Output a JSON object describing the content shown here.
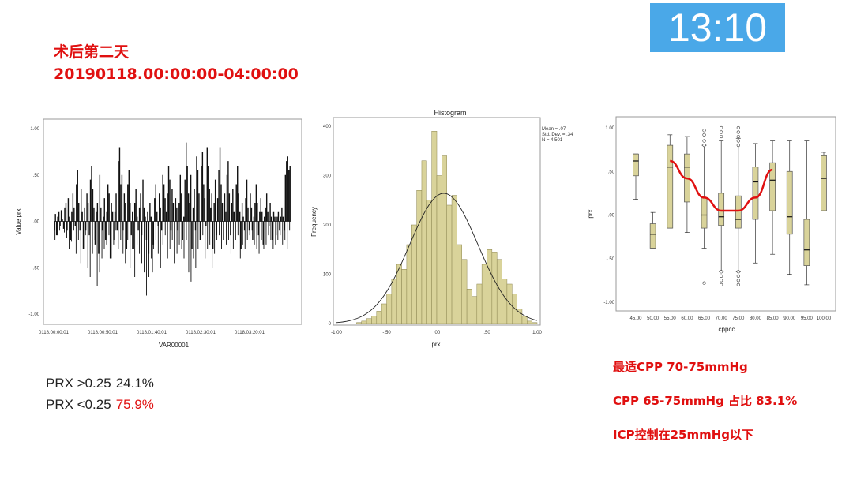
{
  "slide": {
    "title_line1": "术后第二天",
    "title_line2": "20190118.00:00:00-04:00:00",
    "clock": "13:10",
    "stats": [
      {
        "label": "PRX >0.25",
        "value": "24.1%",
        "highlight": false
      },
      {
        "label": "PRX <0.25",
        "value": "75.9%",
        "highlight": true
      }
    ],
    "notes": [
      "最适CPP 70-75mmHg",
      "CPP 65-75mmHg 占比 83.1%",
      "ICP控制在25mmHg以下"
    ],
    "accent": "#e01010",
    "clock_bg": "#4aa8e8"
  },
  "chart_data": [
    {
      "type": "bar",
      "title": "",
      "xlabel": "VAR00001",
      "ylabel": "Value prx",
      "ylim": [
        -1.0,
        1.0
      ],
      "x_ticks": [
        "0118.00:00:01",
        "0118.00:50:01",
        "0118.01:40:01",
        "0118.02:30:01",
        "0118.03:20:01"
      ],
      "y_ticks": [
        "1.00",
        ".50",
        ".00",
        "-.50",
        "-1.00"
      ],
      "values": [
        -0.1,
        0.08,
        -0.15,
        0.05,
        0.1,
        -0.05,
        0.12,
        0.02,
        -0.08,
        0.15,
        0.2,
        -0.1,
        0.25,
        0.05,
        -0.2,
        0.1,
        0.3,
        0.15,
        -0.05,
        0.4,
        0.55,
        0.2,
        -0.1,
        0.35,
        0.1,
        -0.3,
        0.15,
        -0.1,
        0.3,
        0.2,
        -0.15,
        0.45,
        0.6,
        0.35,
        0.15,
        -0.25,
        0.1,
        0.2,
        -0.35,
        0.5,
        0.15,
        -0.1,
        0.05,
        0.25,
        -0.2,
        0.1,
        0.4,
        0.3,
        -0.4,
        0.2,
        0.1,
        -0.2,
        0.1,
        0.3,
        -0.1,
        0.65,
        0.8,
        0.4,
        0.5,
        -0.1,
        0.3,
        0.2,
        -0.3,
        0.4,
        0.55,
        0.2,
        -0.15,
        0.1,
        -0.3,
        0.2,
        0.35,
        0.05,
        -0.1,
        0.15,
        0.3,
        -0.15,
        0.45,
        0.15,
        0.05,
        -0.2,
        0.1,
        -0.35,
        0.2,
        0.05,
        -0.55,
        -0.25,
        0.25,
        0.4,
        0.1,
        -0.05,
        0.3,
        0.15,
        -0.1,
        0.5,
        0.4,
        0.25,
        0.1,
        0.3,
        0.6,
        0.45,
        -0.1,
        0.35,
        0.2,
        -0.45,
        0.25,
        0.15,
        -0.1,
        0.2,
        0.5,
        0.3,
        -0.2,
        0.05,
        0.45,
        0.85,
        0.6,
        0.3,
        0.2,
        0.5,
        -0.3,
        0.15,
        0.35,
        -0.1,
        0.7,
        0.55,
        0.3,
        -0.2,
        0.6,
        0.75,
        0.4,
        0.25,
        -0.05,
        0.8,
        0.6,
        0.35,
        0.15,
        0.3,
        -0.3,
        0.2,
        0.45,
        -0.15,
        0.25,
        0.55,
        0.8,
        0.4,
        0.2,
        -0.2,
        0.3,
        0.1,
        0.5,
        0.65,
        0.3,
        -0.15,
        0.2,
        0.35,
        0.1,
        -0.2,
        0.4,
        0.6,
        0.3,
        0.1,
        -0.3,
        0.2,
        0.05,
        -0.1,
        0.25,
        0.45,
        0.15,
        -0.1,
        0.3,
        0.15,
        -0.2,
        0.05,
        0.2,
        0.4,
        0.2,
        -0.15,
        0.1,
        0.25,
        0.1,
        -0.25,
        0.05,
        0.15,
        0.3,
        0.1,
        -0.05,
        0.2,
        0.05,
        -0.2,
        0.1,
        0.05,
        -0.15,
        0.05,
        0.1,
        -0.1,
        0.05,
        0.15,
        0.05,
        -0.1,
        0.5,
        0.65,
        0.7,
        0.55,
        0.6
      ],
      "neg_values": [
        -0.2,
        -0.15,
        -0.1,
        -0.25,
        -0.12,
        -0.18,
        -0.3,
        -0.22,
        -0.1,
        -0.35,
        -0.2,
        -0.45,
        -0.3,
        -0.15,
        -0.5,
        -0.6,
        -0.35,
        -0.2,
        -0.7,
        -0.55,
        -0.4,
        -0.3,
        -0.25,
        -0.15,
        -0.4,
        -0.25,
        -0.1,
        -0.3,
        -0.2,
        -0.35,
        -0.45,
        -0.2,
        -0.5,
        -0.3,
        -0.6,
        -0.25,
        -0.35,
        -0.45,
        -0.55,
        -0.8,
        -0.6,
        -0.4,
        -0.3,
        -0.2,
        -0.35,
        -0.5,
        -0.25,
        -0.15,
        -0.4,
        -0.3,
        -0.2,
        -0.45,
        -0.35,
        -0.25,
        -0.3,
        -0.4,
        -0.2,
        -0.55,
        -0.65,
        -0.4,
        -0.5,
        -0.3,
        -0.2,
        -0.15,
        -0.4,
        -0.3,
        -0.25,
        -0.5,
        -0.35,
        -0.2,
        -0.15,
        -0.3,
        -0.45,
        -0.25,
        -0.2,
        -0.35,
        -0.3,
        -0.2,
        -0.15,
        -0.4,
        -0.25,
        -0.3,
        -0.2,
        -0.15,
        -0.1,
        -0.25,
        -0.3,
        -0.35,
        -0.2,
        -0.3,
        -0.25,
        -0.15,
        -0.2,
        -0.3,
        -0.25,
        -0.2,
        -0.15,
        -0.25,
        -0.2,
        -0.3,
        -0.1
      ]
    },
    {
      "type": "bar",
      "title": "Histogram",
      "xlabel": "prx",
      "ylabel": "Frequency",
      "ylim": [
        0,
        400
      ],
      "xlim": [
        -1.0,
        1.0
      ],
      "x_ticks": [
        "-1.00",
        "-.50",
        ".00",
        ".50",
        "1.00"
      ],
      "y_ticks": [
        "0",
        "100",
        "200",
        "300",
        "400"
      ],
      "bin_width": 0.05,
      "bin_start": -1.0,
      "values": [
        0,
        0,
        0,
        0,
        2,
        5,
        10,
        15,
        25,
        40,
        60,
        90,
        120,
        110,
        160,
        200,
        270,
        330,
        250,
        390,
        300,
        340,
        240,
        260,
        160,
        130,
        70,
        55,
        80,
        120,
        150,
        145,
        130,
        90,
        80,
        60,
        30,
        15,
        5,
        2
      ],
      "fit_curve": {
        "mean": 0.07,
        "sd": 0.34,
        "n": 4501
      },
      "legend": [
        "Mean = .07",
        "Std. Dev. = .34",
        "N = 4,501"
      ]
    },
    {
      "type": "boxplot",
      "title": "",
      "xlabel": "cppcc",
      "ylabel": "prx",
      "ylim": [
        -1.0,
        1.0
      ],
      "categories": [
        "45.00",
        "50.00",
        "55.00",
        "60.00",
        "65.00",
        "70.00",
        "75.00",
        "80.00",
        "85.00",
        "90.00",
        "95.00",
        "100.00"
      ],
      "y_ticks": [
        "1.00",
        ".50",
        ".00",
        "-.50",
        "-1.00"
      ],
      "boxes": [
        {
          "q1": 0.45,
          "median": 0.62,
          "q3": 0.7,
          "min": 0.18,
          "max": 0.7
        },
        {
          "q1": -0.38,
          "median": -0.22,
          "q3": -0.1,
          "min": -0.38,
          "max": 0.03
        },
        {
          "q1": -0.15,
          "median": 0.55,
          "q3": 0.8,
          "min": -0.15,
          "max": 0.92
        },
        {
          "q1": 0.15,
          "median": 0.55,
          "q3": 0.7,
          "min": -0.2,
          "max": 0.9
        },
        {
          "q1": -0.15,
          "median": 0.0,
          "q3": 0.2,
          "min": -0.38,
          "max": 0.8
        },
        {
          "q1": -0.12,
          "median": -0.02,
          "q3": 0.25,
          "min": -0.65,
          "max": 0.85
        },
        {
          "q1": -0.15,
          "median": -0.05,
          "q3": 0.22,
          "min": -0.65,
          "max": 0.88
        },
        {
          "q1": -0.05,
          "median": 0.38,
          "q3": 0.55,
          "min": -0.55,
          "max": 0.82
        },
        {
          "q1": 0.05,
          "median": 0.4,
          "q3": 0.6,
          "min": -0.45,
          "max": 0.85
        },
        {
          "q1": -0.22,
          "median": -0.02,
          "q3": 0.5,
          "min": -0.68,
          "max": 0.85
        },
        {
          "q1": -0.58,
          "median": -0.4,
          "q3": -0.05,
          "min": -0.8,
          "max": 0.85
        },
        {
          "q1": 0.05,
          "median": 0.42,
          "q3": 0.68,
          "min": 0.05,
          "max": 0.72
        }
      ],
      "outliers": [
        {
          "cat": "65.00",
          "y": [
            -0.78,
            0.8,
            0.85,
            0.92,
            0.97
          ]
        },
        {
          "cat": "70.00",
          "y": [
            -0.65,
            -0.7,
            -0.75,
            -0.8,
            0.9,
            0.95,
            1.0
          ]
        },
        {
          "cat": "75.00",
          "y": [
            -0.65,
            -0.7,
            -0.75,
            -0.8,
            0.8,
            0.85,
            0.9,
            0.95,
            1.0
          ]
        }
      ],
      "trend_curve": {
        "color": "#e01010",
        "points": [
          [
            55,
            0.62
          ],
          [
            60,
            0.42
          ],
          [
            65,
            0.2
          ],
          [
            70,
            0.05
          ],
          [
            75,
            0.05
          ],
          [
            80,
            0.2
          ],
          [
            85,
            0.52
          ]
        ]
      }
    }
  ]
}
